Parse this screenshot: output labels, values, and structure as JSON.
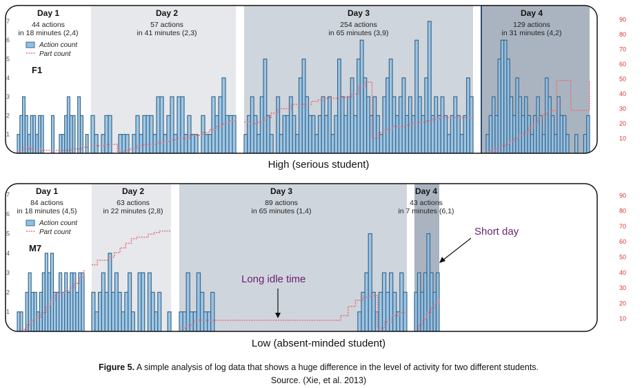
{
  "chart_data": {
    "type": "bar",
    "caption_bold": "Figure 5.",
    "caption_text": " A simple analysis of log data that shows a huge difference in the level of activity for two different students.",
    "source": "Source. (Xie, et al. 2013)",
    "left_axis_ticks": [
      "1",
      "2",
      "3",
      "4",
      "5",
      "6",
      "7"
    ],
    "right_axis_ticks": [
      "10",
      "20",
      "30",
      "40",
      "50",
      "60",
      "70",
      "80",
      "90"
    ],
    "legend": [
      "Action count",
      "Part count"
    ],
    "colors": {
      "bar_fill": "#8fbfe6",
      "bar_stroke": "#3b6788",
      "part_line": "#e8707a",
      "axis_right": "#e0302a"
    },
    "panels": [
      {
        "student": "F1",
        "label": "High (serious student)",
        "days": [
          {
            "title": "Day 1",
            "actions": "44 actions",
            "duration": "in 18 minutes (2,4)",
            "bars": [
              1,
              2,
              3,
              2,
              1,
              2,
              2,
              1,
              2,
              2,
              0,
              0,
              0,
              2,
              0,
              0,
              1,
              1,
              2,
              3,
              2,
              2,
              0,
              3,
              2,
              0,
              1
            ],
            "part": [
              1,
              4,
              3,
              3,
              2,
              2,
              2,
              2,
              2,
              3,
              3,
              4,
              4
            ]
          },
          {
            "title": "Day 2",
            "actions": "57 actions",
            "duration": "in 41 minutes (2,3)",
            "bars": [
              2,
              1,
              0,
              1,
              2,
              2,
              0,
              0,
              1,
              1,
              1,
              0,
              1,
              2,
              1,
              2,
              2,
              2,
              1,
              3,
              3,
              1,
              2,
              3,
              1,
              3,
              3,
              1,
              2,
              1,
              1,
              0,
              2,
              1,
              1,
              3,
              2,
              3,
              4,
              2,
              2,
              2
            ],
            "part": [
              5,
              5,
              6,
              6,
              1,
              2,
              3,
              5,
              6,
              6,
              7,
              8,
              9,
              10,
              10,
              12,
              12,
              14,
              16,
              18,
              20,
              22,
              24
            ]
          },
          {
            "title": "Day 3",
            "actions": "254 actions",
            "duration": "in 65 minutes (3,9)",
            "bars": [
              1,
              2,
              3,
              2,
              1,
              3,
              5,
              2,
              1,
              0,
              3,
              1,
              2,
              2,
              3,
              2,
              1,
              4,
              5,
              3,
              2,
              2,
              1,
              2,
              3,
              2,
              3,
              1,
              2,
              5,
              3,
              2,
              3,
              4,
              2,
              5,
              6,
              4,
              3,
              2,
              3,
              2,
              1,
              3,
              4,
              5,
              3,
              2,
              3,
              4,
              2,
              3,
              2,
              6,
              3,
              2,
              4,
              7,
              2,
              3,
              2,
              3,
              2,
              1,
              2,
              3,
              2,
              1,
              2,
              4,
              3
            ],
            "part": [
              21,
              20,
              21,
              24,
              27,
              30,
              30,
              33,
              33,
              33,
              35,
              36,
              37,
              37,
              37,
              38,
              40,
              45,
              48,
              10,
              14,
              16,
              18,
              18,
              19,
              20,
              21,
              22,
              23,
              24,
              24,
              24,
              24,
              24,
              24
            ]
          },
          {
            "title": "Day 4",
            "actions": "129 actions",
            "duration": "in 31 minutes (4,2)",
            "bars": [
              1,
              2,
              3,
              2,
              5,
              6,
              6,
              5,
              3,
              2,
              4,
              3,
              2,
              3,
              2,
              1,
              2,
              3,
              2,
              1,
              4,
              3,
              2,
              1,
              3,
              2,
              2,
              1,
              0,
              0,
              1,
              0,
              0,
              1,
              2
            ],
            "part": [
              1,
              2,
              3,
              5,
              6,
              8,
              10,
              12,
              14,
              17,
              20,
              24,
              26,
              28,
              29,
              49,
              49,
              49,
              29,
              29,
              29,
              29,
              49
            ]
          }
        ]
      },
      {
        "student": "M7",
        "label": "Low (absent-minded student)",
        "days": [
          {
            "title": "Day 1",
            "actions": "84 actions",
            "duration": "in 18 minutes (4,5)",
            "bars": [
              1,
              1,
              0,
              2,
              3,
              2,
              2,
              1,
              2,
              3,
              4,
              3,
              4,
              2,
              2,
              3,
              2,
              3,
              2,
              3,
              3,
              2,
              3,
              3
            ],
            "part": [
              1,
              3,
              6,
              9,
              11,
              14,
              18,
              22,
              26,
              27,
              28,
              30,
              33,
              37,
              42
            ]
          },
          {
            "title": "Day 2",
            "actions": "63 actions",
            "duration": "in 22 minutes (2,8)",
            "bars": [
              2,
              1,
              2,
              3,
              2,
              4,
              2,
              3,
              2,
              1,
              2,
              3,
              1,
              0,
              3,
              3,
              0,
              3,
              2,
              1,
              2,
              0,
              0,
              1
            ],
            "part": [
              45,
              48,
              48,
              50,
              53,
              56,
              59,
              62,
              63,
              63,
              65,
              66,
              67,
              67,
              67
            ]
          },
          {
            "title": "Day 3",
            "actions": "89 actions",
            "duration": "in 65 minutes (1,4)",
            "bars": [
              1,
              1,
              3,
              1,
              1,
              3,
              2,
              1,
              1,
              2,
              0,
              0,
              0,
              0,
              0,
              0,
              0,
              0,
              0,
              0,
              0,
              0,
              0,
              0,
              0,
              0,
              0,
              0,
              0,
              0,
              0,
              0,
              0,
              0,
              0,
              0,
              0,
              0,
              0,
              0,
              0,
              0,
              0,
              0,
              0,
              0,
              0,
              0,
              0,
              0,
              0,
              1,
              2,
              3,
              5,
              2,
              1,
              2,
              3,
              2,
              3,
              2,
              1,
              3,
              2
            ],
            "part": [
              4,
              6,
              9,
              9,
              9,
              9,
              9,
              9,
              9,
              9,
              9,
              9,
              9,
              9,
              9,
              9,
              9,
              9,
              9,
              9,
              9,
              9,
              12,
              18,
              22,
              24,
              25,
              4,
              8,
              12,
              14,
              15
            ]
          },
          {
            "title": "Day 4",
            "actions": "43 actions",
            "duration": "in 7 minutes (6,1)",
            "bars": [
              2,
              3,
              2,
              3,
              5,
              3,
              2,
              3
            ],
            "part": [
              1,
              6,
              10,
              14,
              17,
              20,
              24
            ]
          }
        ]
      }
    ],
    "annotations": [
      "Long idle time",
      "Short day"
    ]
  }
}
